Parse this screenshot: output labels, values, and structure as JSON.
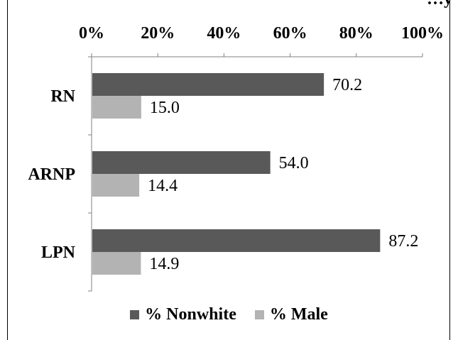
{
  "chart_data": {
    "type": "bar",
    "orientation": "horizontal",
    "title": "…y",
    "categories": [
      "RN",
      "ARNP",
      "LPN"
    ],
    "series": [
      {
        "name": "% Nonwhite",
        "values": [
          70.2,
          54.0,
          87.2
        ],
        "labels": [
          "70.2",
          "54.0",
          "87.2"
        ],
        "color": "#595959"
      },
      {
        "name": "% Male",
        "values": [
          15.0,
          14.4,
          14.9
        ],
        "labels": [
          "15.0",
          "14.4",
          "14.9"
        ],
        "color": "#b3b3b3"
      }
    ],
    "x_ticks": [
      "0%",
      "20%",
      "40%",
      "60%",
      "80%",
      "100%"
    ],
    "xlim": [
      0,
      100
    ],
    "x_axis_position": "top",
    "grid": false,
    "legend_position": "bottom"
  }
}
